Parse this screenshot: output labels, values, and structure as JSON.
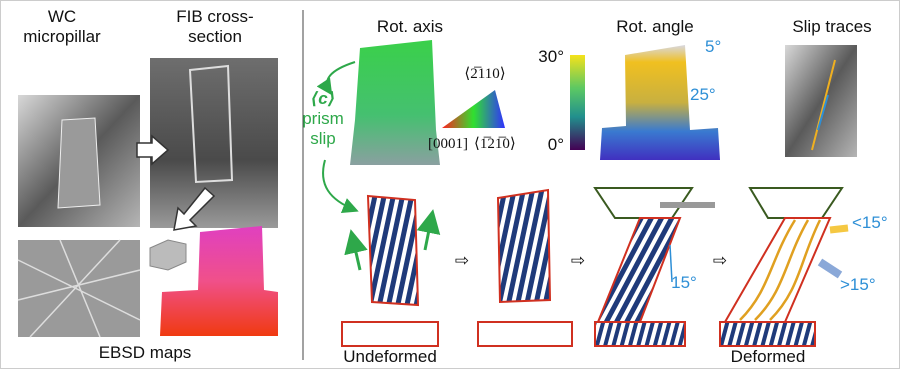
{
  "left": {
    "pillar_label": [
      "WC",
      "micropillar"
    ],
    "fib_label": [
      "FIB cross-",
      "section"
    ],
    "ebsd_label": "EBSD maps"
  },
  "rot_axis": {
    "title": "Rot. axis",
    "slip_label": [
      "⟨c⟩",
      "prism",
      "slip"
    ],
    "directions": [
      "⟨2̅110⟩",
      "[0001]",
      "⟨1̅21̅0⟩"
    ]
  },
  "rot_angle": {
    "title": "Rot. angle",
    "scale_labels": [
      "30°",
      "0°"
    ],
    "annotations": [
      "5°",
      "25°"
    ]
  },
  "slip_traces": {
    "title": "Slip traces"
  },
  "schematic": {
    "angle_label": "15°",
    "low_angle": "<15°",
    "high_angle": ">15°",
    "stages": [
      "Undeformed",
      "Deformed"
    ]
  }
}
